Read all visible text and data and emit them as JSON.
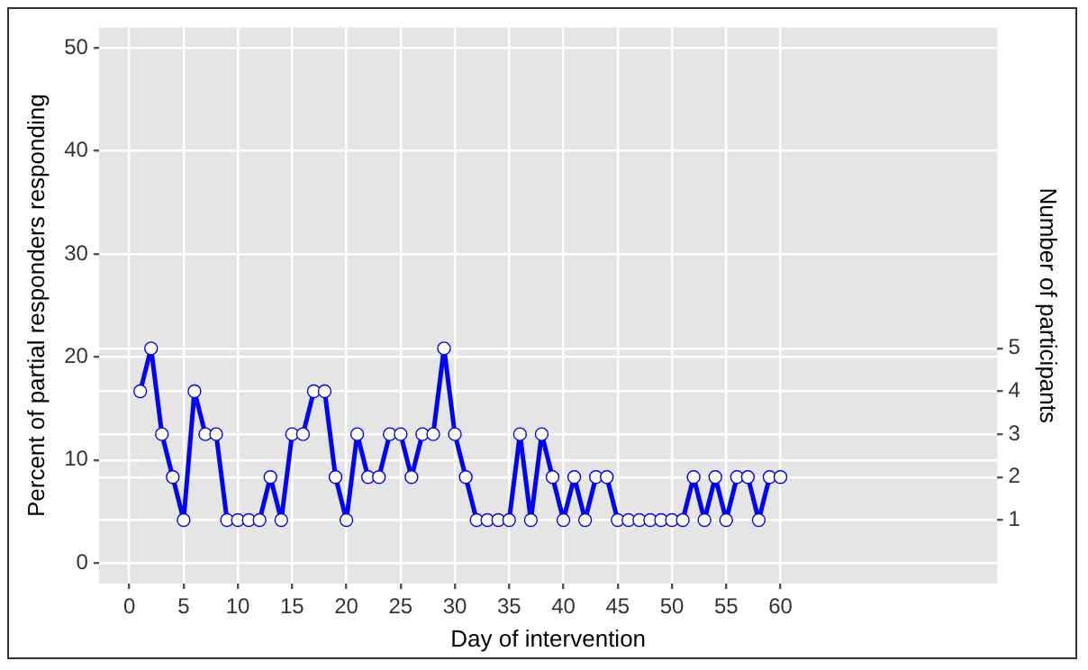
{
  "chart_data": {
    "type": "line",
    "xlabel": "Day of intervention",
    "ylabel": "Percent of partial responders responding",
    "y2label": "Number of participants",
    "x": [
      1,
      2,
      3,
      4,
      5,
      6,
      7,
      8,
      9,
      10,
      11,
      12,
      13,
      14,
      15,
      16,
      17,
      18,
      19,
      20,
      21,
      22,
      23,
      24,
      25,
      26,
      27,
      28,
      29,
      30,
      31,
      32,
      33,
      34,
      35,
      36,
      37,
      38,
      39,
      40,
      41,
      42,
      43,
      44,
      45,
      46,
      47,
      48,
      49,
      50,
      51,
      52,
      53,
      54,
      55,
      56,
      57,
      58,
      59,
      60
    ],
    "series": [
      {
        "color": "#0000ff",
        "axis": "y2",
        "values": [
          4,
          5,
          3,
          2,
          1,
          4,
          3,
          3,
          1,
          1,
          1,
          1,
          2,
          1,
          3,
          3,
          4,
          4,
          2,
          1,
          3,
          2,
          2,
          3,
          3,
          2,
          3,
          3,
          5,
          3,
          2,
          1,
          1,
          1,
          1,
          3,
          1,
          3,
          2,
          1,
          2,
          1,
          2,
          2,
          1,
          1,
          1,
          1,
          1,
          1,
          1,
          2,
          1,
          2,
          1,
          2,
          2,
          1,
          2,
          2
        ]
      }
    ],
    "xlim": [
      -2.8,
      80
    ],
    "xticks": [
      0,
      5,
      10,
      15,
      20,
      25,
      30,
      35,
      40,
      45,
      50,
      55,
      60
    ],
    "ylim": [
      -2,
      52
    ],
    "yticks": [
      0,
      10,
      20,
      30,
      40,
      50
    ],
    "y2lim": [
      -0.48,
      12.48
    ],
    "y2ticks": [
      1,
      2,
      3,
      4,
      5
    ],
    "grid": true,
    "marker": "circle",
    "line_style": "solid",
    "legend": false
  }
}
